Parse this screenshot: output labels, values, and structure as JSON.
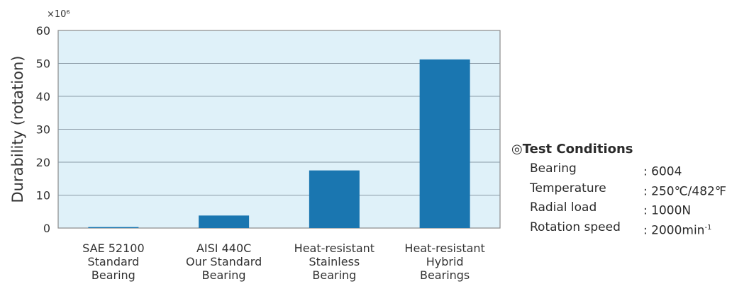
{
  "chart_data": {
    "type": "bar",
    "categories": [
      [
        "SAE 52100",
        "Standard",
        "Bearing"
      ],
      [
        "AISI 440C",
        "Our Standard",
        "Bearing"
      ],
      [
        "Heat-resistant",
        "Stainless",
        "Bearing"
      ],
      [
        "Heat-resistant",
        "Hybrid",
        "Bearings"
      ]
    ],
    "values": [
      0.3,
      3.8,
      17.5,
      51.2
    ],
    "ylabel": "Durability (rotation)",
    "y_multiplier": "×10⁶",
    "ylim": [
      0,
      60
    ],
    "yticks": [
      0,
      10,
      20,
      30,
      40,
      50,
      60
    ],
    "grid": true,
    "bar_color": "#1a76b0",
    "plot_bg": "#dff1f9",
    "grid_color": "#8a9aa6"
  },
  "test_conditions": {
    "mark": "◎",
    "title": "Test Conditions",
    "rows": [
      {
        "label": "Bearing",
        "value": ": 6004",
        "sup": ""
      },
      {
        "label": "Temperature",
        "value": ": 250℃/482℉",
        "sup": ""
      },
      {
        "label": "Radial load",
        "value": ": 1000N",
        "sup": ""
      },
      {
        "label": "Rotation speed",
        "value": ": 2000min",
        "sup": "-1"
      }
    ]
  }
}
